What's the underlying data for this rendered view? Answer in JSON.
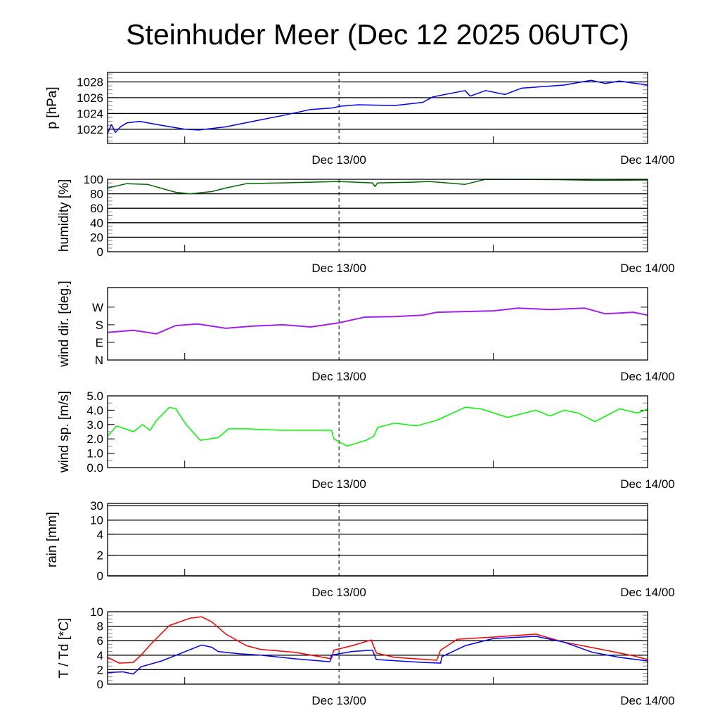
{
  "title": "Steinhuder Meer (Dec 12 2025 06UTC)",
  "x_axis": {
    "unit": "hours since Dec 12 06UTC",
    "range": [
      0,
      42
    ],
    "major_ticks": [
      {
        "value": 18,
        "label": "Dec 13/00"
      },
      {
        "value": 42,
        "label": "Dec 14/00"
      }
    ],
    "minor_ticks": [
      6,
      30
    ],
    "dashed_marker": 18
  },
  "chart_data": [
    {
      "type": "line",
      "id": "pressure",
      "ylabel": "p [hPa]",
      "ylim": [
        1020.2,
        1029.2
      ],
      "yticks": [
        {
          "v": 1022,
          "label": "1022"
        },
        {
          "v": 1024,
          "label": "1024"
        },
        {
          "v": 1026,
          "label": "1026"
        },
        {
          "v": 1028,
          "label": "1028"
        }
      ],
      "grid": true,
      "minor_step": 0.5,
      "series": [
        {
          "name": "pressure",
          "color": "#0000ff",
          "x": [
            0,
            0.3,
            0.6,
            1.0,
            1.5,
            2.5,
            4.2,
            6,
            7.1,
            9.2,
            11.3,
            13.5,
            15.8,
            17.5,
            18,
            19.5,
            22.3,
            24.5,
            25.3,
            27.8,
            28.2,
            29.4,
            30.9,
            32.2,
            35.5,
            37.6,
            38.7,
            39.8,
            42
          ],
          "y": [
            1021.5,
            1022.6,
            1021.6,
            1022.3,
            1022.8,
            1023.0,
            1022.5,
            1022.0,
            1021.9,
            1022.3,
            1023.0,
            1023.7,
            1024.5,
            1024.7,
            1024.9,
            1025.1,
            1025.0,
            1025.4,
            1026.1,
            1026.9,
            1026.2,
            1026.9,
            1026.4,
            1027.2,
            1027.6,
            1028.2,
            1027.8,
            1028.1,
            1027.6
          ]
        }
      ]
    },
    {
      "type": "line",
      "id": "humidity",
      "ylabel": "humidity [%]",
      "ylim": [
        0,
        100
      ],
      "yticks": [
        {
          "v": 0,
          "label": "0"
        },
        {
          "v": 20,
          "label": "20"
        },
        {
          "v": 40,
          "label": "40"
        },
        {
          "v": 60,
          "label": "60"
        },
        {
          "v": 80,
          "label": "80"
        },
        {
          "v": 100,
          "label": "100"
        }
      ],
      "grid": true,
      "minor_step": 5,
      "series": [
        {
          "name": "humidity",
          "color": "#006400",
          "x": [
            0,
            1.5,
            3.1,
            5.3,
            6.4,
            8.1,
            9.2,
            10.8,
            13.6,
            18,
            20.6,
            20.8,
            21,
            23.7,
            25,
            27.8,
            29.4,
            35,
            38,
            42
          ],
          "y": [
            88,
            94,
            93,
            82,
            80,
            83,
            88,
            94,
            95,
            97,
            95,
            90,
            95,
            96,
            97,
            93,
            100,
            99.5,
            98.5,
            99
          ]
        }
      ]
    },
    {
      "type": "line",
      "id": "wind-direction",
      "ylabel": "wind dir. [deg.]",
      "ylim": [
        0,
        370
      ],
      "yticks": [
        {
          "v": 0,
          "label": "N"
        },
        {
          "v": 90,
          "label": "E"
        },
        {
          "v": 180,
          "label": "S"
        },
        {
          "v": 270,
          "label": "W"
        }
      ],
      "grid": false,
      "minor_step": 0,
      "series": [
        {
          "name": "wind direction",
          "color": "#a020f0",
          "x": [
            0,
            2,
            3.8,
            5.3,
            7,
            9.2,
            11.3,
            13.6,
            15.8,
            18,
            20,
            22.3,
            24.5,
            25.6,
            30,
            31.9,
            34.4,
            37.1,
            38.7,
            40.9,
            42
          ],
          "y": [
            141,
            152,
            134,
            176,
            184,
            162,
            173,
            180,
            169,
            190,
            219,
            222,
            229,
            244,
            251,
            265,
            258,
            265,
            236,
            244,
            229
          ]
        }
      ]
    },
    {
      "type": "line",
      "id": "wind-speed",
      "ylabel": "wind sp. [m/s]",
      "ylim": [
        0,
        5
      ],
      "yticks": [
        {
          "v": 0,
          "label": "0.0"
        },
        {
          "v": 1,
          "label": "1.0"
        },
        {
          "v": 2,
          "label": "2.0"
        },
        {
          "v": 3,
          "label": "3.0"
        },
        {
          "v": 4,
          "label": "4.0"
        },
        {
          "v": 5,
          "label": "5.0"
        }
      ],
      "grid": false,
      "minor_step": 0.5,
      "series": [
        {
          "name": "wind speed",
          "color": "#00ff00",
          "x": [
            0,
            0.7,
            2,
            2.7,
            3.3,
            3.8,
            4.8,
            5.3,
            6.1,
            7.2,
            8.6,
            9.4,
            10.8,
            13.5,
            17.4,
            17.6,
            18.6,
            20.1,
            20.7,
            21,
            22.3,
            24,
            25.6,
            27.8,
            29,
            31.1,
            33.3,
            34.4,
            35.5,
            36.6,
            37.9,
            39.8,
            41.2,
            42
          ],
          "y": [
            2.2,
            2.9,
            2.5,
            3.0,
            2.6,
            3.3,
            4.2,
            4.1,
            3.0,
            1.9,
            2.1,
            2.7,
            2.7,
            2.6,
            2.6,
            2.0,
            1.5,
            1.9,
            2.2,
            2.8,
            3.1,
            2.9,
            3.3,
            4.2,
            4.1,
            3.5,
            4.0,
            3.6,
            4.0,
            3.8,
            3.2,
            4.1,
            3.8,
            4.1
          ]
        }
      ]
    },
    {
      "type": "line",
      "id": "rain",
      "ylabel": "rain [mm]",
      "ylim": [
        0,
        30
      ],
      "yticks": [
        {
          "v": 0,
          "label": "0"
        },
        {
          "v": 2,
          "label": "2"
        },
        {
          "v": 4,
          "label": "4"
        },
        {
          "v": 10,
          "label": "10"
        },
        {
          "v": 30,
          "label": "30"
        }
      ],
      "grid": true,
      "minor_step": 0,
      "series": [
        {
          "name": "rain",
          "color": "#00008b",
          "x": [
            0,
            42
          ],
          "y": [
            0,
            0
          ]
        }
      ]
    },
    {
      "type": "line",
      "id": "temperature",
      "ylabel": "T / Td [*C]",
      "ylim": [
        0,
        10
      ],
      "yticks": [
        {
          "v": 0,
          "label": "0"
        },
        {
          "v": 2,
          "label": "2"
        },
        {
          "v": 4,
          "label": "4"
        },
        {
          "v": 6,
          "label": "6"
        },
        {
          "v": 8,
          "label": "8"
        },
        {
          "v": 10,
          "label": "10"
        }
      ],
      "grid": true,
      "minor_step": 0.5,
      "series": [
        {
          "name": "T",
          "color": "#ff0000",
          "x": [
            0,
            0.9,
            2,
            2.6,
            3.4,
            4.8,
            6.4,
            7.3,
            8.1,
            9.2,
            10.8,
            11.9,
            14.6,
            17.4,
            17.6,
            19,
            20.5,
            20.9,
            22.3,
            25.6,
            25.9,
            27.2,
            30,
            33.3,
            35.5,
            38.7,
            40.9,
            42
          ],
          "y": [
            3.7,
            2.9,
            3.0,
            4.0,
            5.6,
            8.1,
            9.1,
            9.3,
            8.6,
            6.9,
            5.3,
            4.8,
            4.4,
            3.5,
            4.7,
            5.3,
            6.1,
            4.3,
            3.7,
            3.3,
            4.7,
            6.2,
            6.5,
            6.9,
            5.8,
            4.7,
            3.9,
            3.4
          ]
        },
        {
          "name": "Td",
          "color": "#0000ff",
          "x": [
            0,
            1.2,
            2,
            2.6,
            4.2,
            5.9,
            7.3,
            8.1,
            8.6,
            10.2,
            11.9,
            14.6,
            17.3,
            17.4,
            19,
            20.6,
            20.9,
            24.5,
            25.9,
            26,
            27.8,
            30,
            33.3,
            35.5,
            37.7,
            39.8,
            42
          ],
          "y": [
            1.6,
            1.7,
            1.4,
            2.4,
            3.2,
            4.4,
            5.4,
            5.1,
            4.5,
            4.2,
            4.0,
            3.5,
            3.1,
            4.0,
            4.5,
            4.7,
            3.4,
            3.0,
            2.9,
            3.8,
            5.3,
            6.3,
            6.6,
            5.8,
            4.4,
            3.7,
            3.2
          ]
        }
      ]
    }
  ]
}
